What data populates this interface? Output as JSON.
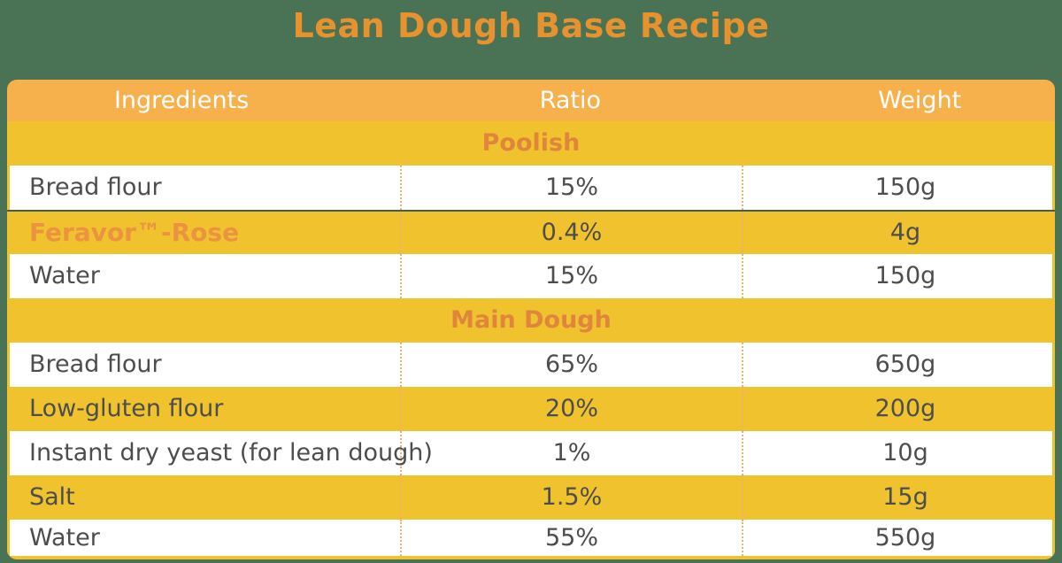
{
  "title": "Lean Dough Base Recipe",
  "colors": {
    "green_background": "#4A7254",
    "header_amber": "#F7B14C",
    "row_yellow": "#F0C22E",
    "title_orange": "#E6922F",
    "section_orange": "#E0853C",
    "brand_orange": "#EB9340",
    "text_dark": "#4D4D4F",
    "divider_dash": "#EBB271",
    "hairline_dark_green": "#3E5F4B",
    "white": "#FFFFFF"
  },
  "table": {
    "header": [
      "Ingredients",
      "Ratio",
      "Weight"
    ],
    "sections": [
      {
        "label": "Poolish",
        "rows": [
          {
            "ingredient": "Bread flour",
            "ratio": "15%",
            "weight": "150g",
            "highlight": false
          },
          {
            "ingredient": "Feravor™-Rose",
            "ratio": "0.4%",
            "weight": "4g",
            "highlight": true
          },
          {
            "ingredient": "Water",
            "ratio": "15%",
            "weight": "150g",
            "highlight": false
          }
        ]
      },
      {
        "label": "Main Dough",
        "rows": [
          {
            "ingredient": "Bread flour",
            "ratio": "65%",
            "weight": "650g",
            "highlight": false
          },
          {
            "ingredient": "Low-gluten flour",
            "ratio": "20%",
            "weight": "200g",
            "highlight": false
          },
          {
            "ingredient": "Instant dry yeast (for lean dough)",
            "ratio": "1%",
            "weight": "10g",
            "highlight": false
          },
          {
            "ingredient": "Salt",
            "ratio": "1.5%",
            "weight": "15g",
            "highlight": false
          },
          {
            "ingredient": "Water",
            "ratio": "55%",
            "weight": "550g",
            "highlight": false
          }
        ]
      }
    ]
  }
}
